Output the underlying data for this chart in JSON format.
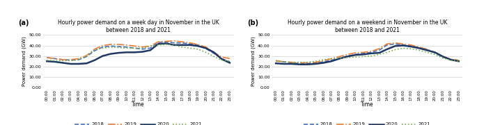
{
  "title_a": "Hourly power demand on a week day in November in the UK\nbetween 2018 and 2021",
  "title_b": "Hourly power demand on a weekend in November in the UK\nbetween 2018 and 2021",
  "xlabel": "Time",
  "ylabel": "Power demand (GW)",
  "label_a": "(a)",
  "label_b": "(b)",
  "time_labels": [
    "00:00",
    "01:00",
    "02:00",
    "03:00",
    "04:00",
    "05:00",
    "06:00",
    "07:00",
    "08:00",
    "09:00",
    "10:00",
    "11:00",
    "12:00",
    "13:00",
    "14:00",
    "15:00",
    "16:00",
    "17:00",
    "18:00",
    "19:00",
    "20:00",
    "21:00",
    "22:00",
    "23:00"
  ],
  "ylim": [
    0,
    50
  ],
  "yticks": [
    0,
    10,
    20,
    30,
    40,
    50
  ],
  "weekday": {
    "2018": [
      28.5,
      27.5,
      26.5,
      26.0,
      26.5,
      29.5,
      35.0,
      38.5,
      39.5,
      39.0,
      38.5,
      37.5,
      36.5,
      37.5,
      43.0,
      43.5,
      42.5,
      42.5,
      41.5,
      40.5,
      37.0,
      32.5,
      27.5,
      24.5
    ],
    "2019": [
      28.5,
      27.5,
      26.5,
      26.5,
      27.5,
      30.5,
      36.5,
      40.0,
      41.0,
      41.0,
      40.5,
      39.5,
      38.5,
      39.5,
      43.5,
      44.0,
      44.5,
      43.5,
      42.5,
      41.0,
      38.5,
      33.5,
      29.0,
      27.5
    ],
    "2020": [
      25.0,
      24.5,
      23.5,
      22.5,
      22.5,
      23.0,
      26.0,
      30.0,
      32.0,
      33.0,
      33.5,
      33.5,
      34.0,
      35.5,
      41.5,
      42.0,
      40.5,
      40.5,
      40.5,
      39.5,
      37.5,
      33.5,
      27.0,
      23.5
    ],
    "2021": [
      26.0,
      25.5,
      25.5,
      25.5,
      26.5,
      30.0,
      36.0,
      37.5,
      38.5,
      38.0,
      37.5,
      37.5,
      37.5,
      39.5,
      40.5,
      41.0,
      40.5,
      38.5,
      37.5,
      36.5,
      33.5,
      29.5,
      26.0,
      25.0
    ]
  },
  "weekend": {
    "2018": [
      25.5,
      24.5,
      23.5,
      23.0,
      23.0,
      23.5,
      24.5,
      26.0,
      28.0,
      30.0,
      31.5,
      32.5,
      33.5,
      35.5,
      40.5,
      41.5,
      40.5,
      39.5,
      38.0,
      36.0,
      33.0,
      29.0,
      26.5,
      25.5
    ],
    "2019": [
      25.5,
      24.5,
      24.0,
      23.5,
      23.5,
      24.0,
      25.5,
      27.5,
      29.5,
      31.5,
      33.0,
      33.5,
      34.5,
      37.0,
      41.5,
      42.5,
      41.5,
      40.5,
      38.5,
      36.5,
      33.5,
      29.5,
      27.0,
      26.0
    ],
    "2020": [
      23.0,
      22.5,
      22.5,
      22.0,
      22.0,
      22.5,
      23.5,
      25.0,
      27.5,
      29.5,
      31.0,
      31.5,
      32.5,
      33.0,
      36.5,
      39.5,
      40.0,
      39.0,
      37.5,
      35.5,
      33.5,
      29.5,
      26.5,
      25.0
    ],
    "2021": [
      25.0,
      24.5,
      24.0,
      24.0,
      24.0,
      25.0,
      26.5,
      27.5,
      28.0,
      28.5,
      29.0,
      29.5,
      30.0,
      31.5,
      33.5,
      36.0,
      37.5,
      37.0,
      35.5,
      33.5,
      31.5,
      28.0,
      26.0,
      25.0
    ]
  },
  "colors": {
    "2018": "#4472c4",
    "2019": "#ed7d31",
    "2020": "#203864",
    "2021": "#70ad47"
  },
  "linestyles": {
    "2018": "--",
    "2019": "-.",
    "2020": "-",
    "2021": ":"
  },
  "linewidths": {
    "2018": 1.2,
    "2019": 1.2,
    "2020": 1.8,
    "2021": 1.2
  },
  "legend_years": [
    "2018",
    "2019",
    "2020",
    "2021"
  ]
}
